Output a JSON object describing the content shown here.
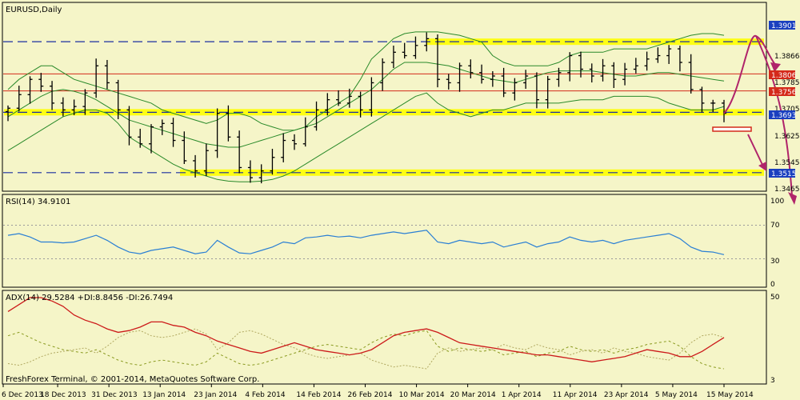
{
  "main": {
    "symbol_label": "EURUSD,Daily",
    "price_ticks": [
      "1.3866",
      "1.3785",
      "1.3705",
      "1.3625",
      "1.3545",
      "1.3465"
    ],
    "price_labels": [
      {
        "text": "1.3901",
        "value": 1.3901,
        "bg": "#1a3fbf"
      },
      {
        "text": "1.3806",
        "value": 1.3806,
        "bg": "#d42a1a"
      },
      {
        "text": "1.3756",
        "value": 1.3756,
        "bg": "#d42a1a"
      },
      {
        "text": "1.3693",
        "value": 1.3693,
        "bg": "#1a3fbf"
      },
      {
        "text": "1.3515",
        "value": 1.3515,
        "bg": "#1a3fbf"
      }
    ]
  },
  "rsi": {
    "label": "RSI(14) 34.9101",
    "ticks": [
      "100",
      "70",
      "30",
      "0"
    ]
  },
  "adx": {
    "label": "ADX(14) 29.5284 +DI:8.8456 -DI:26.7494",
    "ticks": [
      "50",
      "3"
    ]
  },
  "footer": {
    "copyright": "FreshForex Terminal, © 2001-2014, MetaQuotes Software Corp."
  },
  "colors": {
    "background": "#f5f5c8",
    "candles": "#000000",
    "bollinger": "#2a8a2a",
    "support_resistance": "#d42a1a",
    "zone_highlight": "#ffff00",
    "dashed_level": "#1a2fa0",
    "rsi_line": "#2a7fd4",
    "adx_line": "#cc1a1a",
    "plus_di": "#8a9a20",
    "minus_di": "#b0a860",
    "forecast_arrows": "#b0246a"
  },
  "chart_data": [
    {
      "type": "line",
      "name": "price",
      "x_type": "date",
      "x_ticks": [
        "6 Dec 2013",
        "18 Dec 2013",
        "31 Dec 2013",
        "13 Jan 2014",
        "23 Jan 2014",
        "4 Feb 2014",
        "14 Feb 2014",
        "26 Feb 2014",
        "10 Mar 2014",
        "20 Mar 2014",
        "1 Apr 2014",
        "11 Apr 2014",
        "23 Apr 2014",
        "5 May 2014",
        "15 May 2014"
      ],
      "ylim": [
        1.3445,
        1.3935
      ],
      "horizontal_levels": [
        1.3901,
        1.3806,
        1.3756,
        1.3693,
        1.3515
      ],
      "close": [
        1.3705,
        1.3745,
        1.379,
        1.377,
        1.372,
        1.37,
        1.371,
        1.375,
        1.383,
        1.378,
        1.37,
        1.362,
        1.36,
        1.365,
        1.366,
        1.361,
        1.355,
        1.352,
        1.358,
        1.369,
        1.362,
        1.353,
        1.35,
        1.352,
        1.356,
        1.361,
        1.36,
        1.365,
        1.37,
        1.373,
        1.372,
        1.374,
        1.37,
        1.378,
        1.384,
        1.387,
        1.386,
        1.389,
        1.391,
        1.379,
        1.378,
        1.383,
        1.381,
        1.379,
        1.38,
        1.375,
        1.378,
        1.38,
        1.373,
        1.379,
        1.381,
        1.386,
        1.382,
        1.38,
        1.383,
        1.379,
        1.382,
        1.383,
        1.385,
        1.386,
        1.388,
        1.384,
        1.376,
        1.372,
        1.372,
        1.369
      ],
      "bollinger_upper": [
        1.376,
        1.379,
        1.381,
        1.383,
        1.383,
        1.381,
        1.379,
        1.378,
        1.377,
        1.376,
        1.375,
        1.374,
        1.373,
        1.372,
        1.37,
        1.369,
        1.368,
        1.367,
        1.366,
        1.367,
        1.369,
        1.369,
        1.368,
        1.366,
        1.365,
        1.364,
        1.364,
        1.365,
        1.368,
        1.37,
        1.372,
        1.374,
        1.379,
        1.385,
        1.388,
        1.391,
        1.3925,
        1.393,
        1.393,
        1.393,
        1.3925,
        1.392,
        1.391,
        1.39,
        1.386,
        1.384,
        1.383,
        1.383,
        1.383,
        1.383,
        1.384,
        1.386,
        1.387,
        1.387,
        1.387,
        1.388,
        1.388,
        1.388,
        1.388,
        1.389,
        1.39,
        1.391,
        1.392,
        1.3925,
        1.3925,
        1.392
      ],
      "bollinger_middle": [
        1.368,
        1.37,
        1.372,
        1.374,
        1.3755,
        1.376,
        1.3755,
        1.3745,
        1.373,
        1.371,
        1.369,
        1.367,
        1.366,
        1.365,
        1.364,
        1.363,
        1.362,
        1.361,
        1.36,
        1.3595,
        1.359,
        1.359,
        1.36,
        1.361,
        1.362,
        1.363,
        1.364,
        1.365,
        1.366,
        1.368,
        1.37,
        1.372,
        1.374,
        1.376,
        1.379,
        1.382,
        1.384,
        1.384,
        1.384,
        1.3835,
        1.383,
        1.382,
        1.381,
        1.38,
        1.379,
        1.3785,
        1.378,
        1.379,
        1.38,
        1.381,
        1.3815,
        1.3815,
        1.3815,
        1.3815,
        1.381,
        1.3805,
        1.38,
        1.38,
        1.3805,
        1.381,
        1.381,
        1.3805,
        1.38,
        1.3795,
        1.379,
        1.3785
      ],
      "bollinger_lower": [
        1.358,
        1.36,
        1.362,
        1.364,
        1.366,
        1.368,
        1.369,
        1.37,
        1.37,
        1.369,
        1.366,
        1.362,
        1.36,
        1.358,
        1.356,
        1.354,
        1.3525,
        1.3515,
        1.3505,
        1.3495,
        1.349,
        1.3488,
        1.3488,
        1.349,
        1.3495,
        1.3505,
        1.352,
        1.354,
        1.356,
        1.358,
        1.36,
        1.362,
        1.364,
        1.366,
        1.368,
        1.37,
        1.372,
        1.374,
        1.375,
        1.372,
        1.37,
        1.369,
        1.368,
        1.369,
        1.37,
        1.37,
        1.371,
        1.372,
        1.372,
        1.372,
        1.372,
        1.3725,
        1.373,
        1.373,
        1.373,
        1.374,
        1.374,
        1.374,
        1.374,
        1.3735,
        1.372,
        1.371,
        1.37,
        1.37,
        1.37,
        1.371
      ]
    },
    {
      "type": "line",
      "name": "RSI(14)",
      "ylim": [
        0,
        100
      ],
      "levels": [
        70,
        30
      ],
      "values": [
        58,
        60,
        56,
        50,
        50,
        49,
        50,
        54,
        58,
        52,
        44,
        38,
        36,
        40,
        42,
        44,
        40,
        36,
        38,
        52,
        44,
        37,
        36,
        40,
        44,
        50,
        48,
        55,
        56,
        58,
        56,
        57,
        55,
        58,
        60,
        62,
        60,
        62,
        64,
        50,
        48,
        52,
        50,
        48,
        50,
        44,
        47,
        50,
        44,
        48,
        50,
        56,
        52,
        50,
        52,
        48,
        52,
        54,
        56,
        58,
        60,
        54,
        44,
        39,
        38,
        35
      ]
    },
    {
      "type": "line",
      "name": "ADX(14)",
      "ylim": [
        3,
        50
      ],
      "adx": [
        42,
        46,
        50,
        50,
        48,
        45,
        40,
        37,
        35,
        32,
        30,
        31,
        33,
        36,
        36,
        34,
        33,
        30,
        28,
        25,
        23,
        21,
        19,
        18,
        20,
        22,
        24,
        22,
        20,
        19,
        18,
        17,
        18,
        20,
        24,
        28,
        30,
        31,
        32,
        30,
        27,
        24,
        23,
        22,
        21,
        20,
        19,
        18,
        17,
        17,
        16,
        15,
        14,
        13,
        14,
        15,
        16,
        18,
        20,
        19,
        18,
        16,
        16,
        19,
        23,
        27
      ],
      "plus_di": [
        28,
        30,
        27,
        24,
        22,
        20,
        19,
        18,
        20,
        17,
        14,
        12,
        11,
        13,
        14,
        13,
        12,
        11,
        13,
        18,
        15,
        12,
        11,
        12,
        14,
        16,
        18,
        20,
        22,
        23,
        22,
        21,
        20,
        24,
        27,
        29,
        28,
        30,
        31,
        22,
        19,
        21,
        20,
        19,
        20,
        17,
        18,
        19,
        16,
        18,
        19,
        22,
        20,
        19,
        20,
        18,
        20,
        21,
        23,
        24,
        25,
        22,
        16,
        12,
        10,
        9
      ],
      "minus_di": [
        12,
        11,
        13,
        16,
        18,
        19,
        20,
        21,
        18,
        22,
        27,
        30,
        31,
        28,
        27,
        28,
        30,
        32,
        29,
        20,
        24,
        30,
        31,
        29,
        26,
        23,
        21,
        18,
        16,
        15,
        16,
        17,
        18,
        14,
        12,
        10,
        11,
        10,
        9,
        18,
        21,
        19,
        20,
        21,
        20,
        23,
        21,
        20,
        23,
        21,
        20,
        17,
        19,
        20,
        18,
        21,
        19,
        18,
        16,
        15,
        14,
        18,
        24,
        28,
        29,
        27
      ]
    }
  ]
}
